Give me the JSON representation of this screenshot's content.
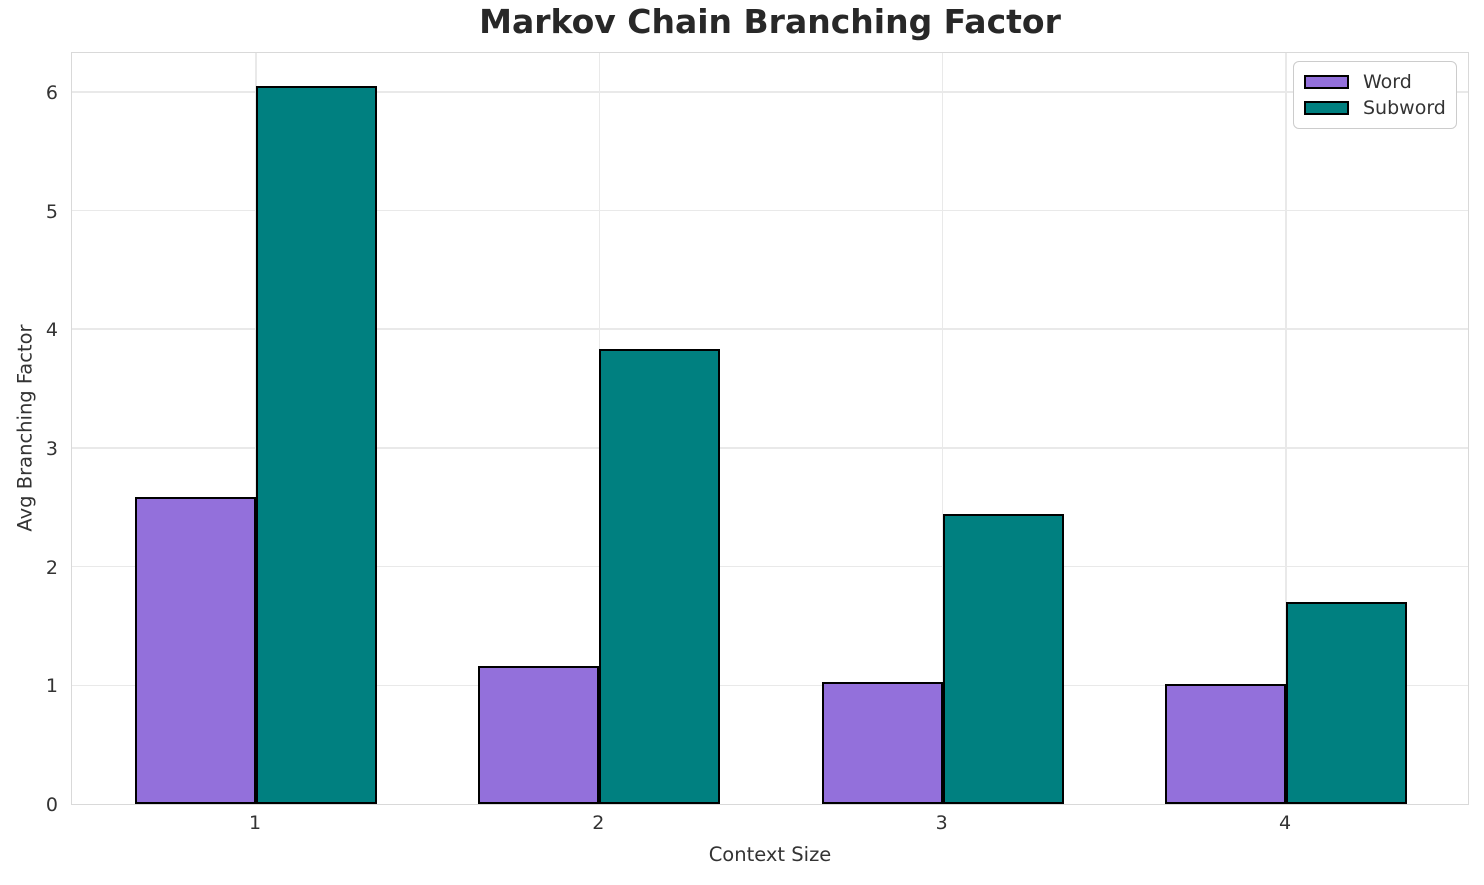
{
  "chart_data": {
    "type": "bar",
    "title": "Markov Chain Branching Factor",
    "xlabel": "Context Size",
    "ylabel": "Avg Branching Factor",
    "categories": [
      "1",
      "2",
      "3",
      "4"
    ],
    "series": [
      {
        "name": "Word",
        "color": "#9370DB",
        "values": [
          2.59,
          1.16,
          1.03,
          1.01
        ]
      },
      {
        "name": "Subword",
        "color": "#008080",
        "values": [
          6.05,
          3.83,
          2.44,
          1.7
        ]
      }
    ],
    "yticks": [
      0,
      1,
      2,
      3,
      4,
      5,
      6
    ],
    "ylim": [
      0,
      6.34
    ],
    "grid": true,
    "legend_position": "upper right",
    "bar_edge_color": "#000000",
    "background_color": "#ffffff",
    "grid_color": "#e9e9e9"
  }
}
